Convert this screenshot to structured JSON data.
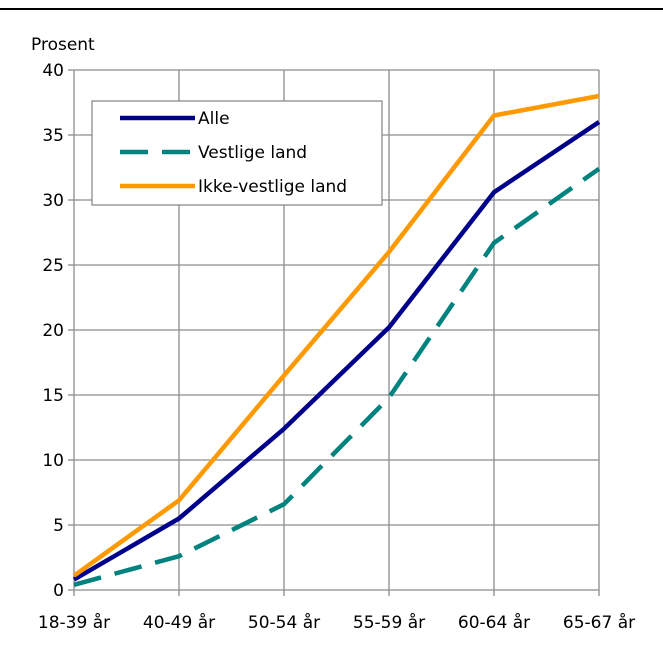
{
  "chart_data": {
    "type": "line",
    "ylabel": "Prosent",
    "categories": [
      "18-39 år",
      "40-49 år",
      "50-54 år",
      "55-59 år",
      "60-64 år",
      "65-67 år"
    ],
    "ylim": [
      0,
      40
    ],
    "yticks": [
      0,
      5,
      10,
      15,
      20,
      25,
      30,
      35,
      40
    ],
    "grid": true,
    "legend_position": "top-left",
    "series": [
      {
        "name": "Alle",
        "values": [
          0.8,
          5.5,
          12.4,
          20.2,
          30.6,
          36.0
        ],
        "color": "#00008B",
        "dash": "solid"
      },
      {
        "name": "Vestlige land",
        "values": [
          0.4,
          2.6,
          6.6,
          14.8,
          26.7,
          32.4
        ],
        "color": "#00827F",
        "dash": "dashed"
      },
      {
        "name": "Ikke-vestlige land",
        "values": [
          1.1,
          6.9,
          16.5,
          26.0,
          36.5,
          38.0
        ],
        "color": "#FF9900",
        "dash": "solid"
      }
    ]
  }
}
